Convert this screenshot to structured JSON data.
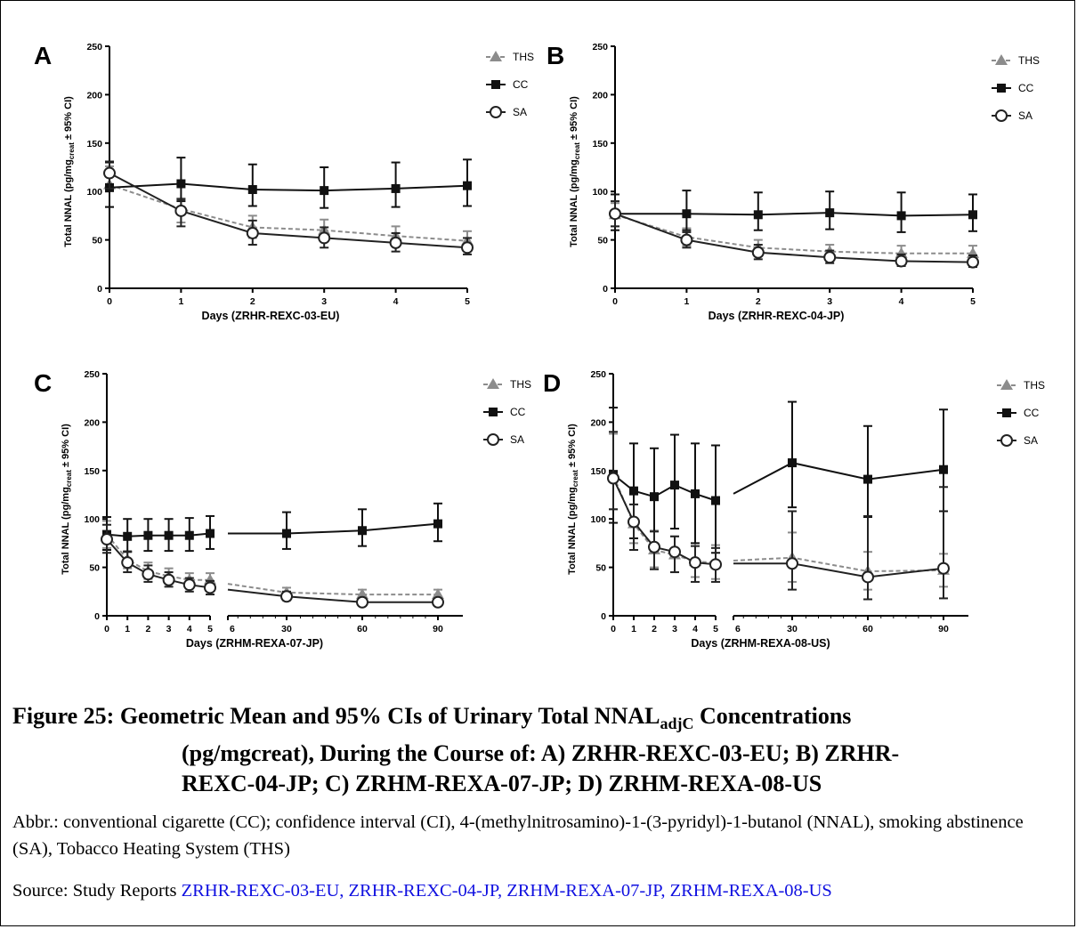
{
  "figure": {
    "caption_prefix": "Figure 25: Geometric Mean and 95% CIs of Urinary Total NNAL",
    "caption_sub": "adjC",
    "caption_rest_line1": " Concentrations",
    "caption_line2": "(pg/mgcreat), During the Course of: A) ZRHR-REXC-03-EU; B) ZRHR-",
    "caption_line3": "REXC-04-JP; C) ZRHM-REXA-07-JP; D) ZRHM-REXA-08-US",
    "abbr_text": "Abbr.: conventional cigarette (CC); confidence interval (CI), 4-(methylnitrosamino)-1-(3-pyridyl)-1-butanol (NNAL), smoking abstinence (SA), Tobacco Heating System (THS)",
    "source_label": "Source: Study Reports ",
    "source_link": "ZRHR-REXC-03-EU, ZRHR-REXC-04-JP, ZRHM-REXA-07-JP, ZRHM-REXA-08-US"
  },
  "colors": {
    "ths": "#8c8c8c",
    "cc": "#111111",
    "sa": "#222222",
    "link": "#1010e0"
  },
  "chart_data": [
    {
      "panel": "A",
      "type": "line",
      "ylabel": "Total NNAL (pg/mg",
      "ylabel_sub": "creat",
      "ylabel_suffix": " ± 95% CI)",
      "xlabel": "Days (ZRHR-REXC-03-EU)",
      "ylim": [
        0,
        250
      ],
      "yticks": [
        "0",
        "50",
        "100",
        "150",
        "200",
        "250"
      ],
      "xticks": [
        "0",
        "1",
        "2",
        "3",
        "4",
        "5"
      ],
      "legend": [
        "THS",
        "CC",
        "SA"
      ],
      "series": [
        {
          "name": "THS",
          "x": [
            0,
            1,
            2,
            3,
            4,
            5
          ],
          "y": [
            107,
            82,
            63,
            60,
            54,
            49
          ],
          "lo": [
            84,
            68,
            52,
            50,
            45,
            41
          ],
          "hi": [
            126,
            93,
            75,
            71,
            64,
            59
          ]
        },
        {
          "name": "CC",
          "x": [
            0,
            1,
            2,
            3,
            4,
            5
          ],
          "y": [
            104,
            108,
            102,
            101,
            103,
            106
          ],
          "lo": [
            84,
            90,
            85,
            83,
            84,
            85
          ],
          "hi": [
            130,
            135,
            128,
            125,
            130,
            133
          ]
        },
        {
          "name": "SA",
          "x": [
            0,
            1,
            2,
            3,
            4,
            5
          ],
          "y": [
            119,
            80,
            57,
            52,
            47,
            42
          ],
          "lo": [
            103,
            64,
            45,
            42,
            38,
            35
          ],
          "hi": [
            131,
            92,
            70,
            63,
            57,
            52
          ]
        }
      ]
    },
    {
      "panel": "B",
      "type": "line",
      "ylabel": "Total NNAL (pg/mg",
      "ylabel_sub": "creat",
      "ylabel_suffix": " ± 95% CI)",
      "xlabel": "Days (ZRHR-REXC-04-JP)",
      "ylim": [
        0,
        250
      ],
      "yticks": [
        "0",
        "50",
        "100",
        "150",
        "200",
        "250"
      ],
      "xticks": [
        "0",
        "1",
        "2",
        "3",
        "4",
        "5"
      ],
      "legend": [
        "THS",
        "CC",
        "SA"
      ],
      "series": [
        {
          "name": "THS",
          "x": [
            0,
            1,
            2,
            3,
            4,
            5
          ],
          "y": [
            76,
            53,
            42,
            38,
            36,
            36
          ],
          "lo": [
            64,
            44,
            34,
            30,
            28,
            28
          ],
          "hi": [
            88,
            62,
            50,
            45,
            44,
            44
          ]
        },
        {
          "name": "CC",
          "x": [
            0,
            1,
            2,
            3,
            4,
            5
          ],
          "y": [
            77,
            77,
            76,
            78,
            75,
            76
          ],
          "lo": [
            60,
            60,
            60,
            61,
            58,
            59
          ],
          "hi": [
            97,
            101,
            99,
            100,
            99,
            97
          ]
        },
        {
          "name": "SA",
          "x": [
            0,
            1,
            2,
            3,
            4,
            5
          ],
          "y": [
            77,
            50,
            37,
            32,
            28,
            27
          ],
          "lo": [
            64,
            42,
            30,
            26,
            23,
            22
          ],
          "hi": [
            90,
            58,
            45,
            39,
            35,
            34
          ]
        }
      ]
    },
    {
      "panel": "C",
      "type": "line",
      "ylabel": "Total NNAL (pg/mg",
      "ylabel_sub": "creat",
      "ylabel_suffix": " ± 95% CI)",
      "xlabel": "Days (ZRHM-REXA-07-JP)",
      "ylim": [
        0,
        250
      ],
      "yticks": [
        "0",
        "50",
        "100",
        "150",
        "200",
        "250"
      ],
      "xticks_left": [
        "0",
        "1",
        "2",
        "3",
        "4",
        "5"
      ],
      "xticks_right": [
        "6",
        "30",
        "60",
        "90"
      ],
      "legend": [
        "THS",
        "CC",
        "SA"
      ],
      "series": [
        {
          "name": "THS",
          "x": [
            0,
            1,
            2,
            3,
            4,
            5,
            6,
            30,
            60,
            90
          ],
          "y": [
            84,
            58,
            46,
            41,
            37,
            37,
            33,
            24,
            22,
            22
          ],
          "lo": [
            70,
            49,
            38,
            34,
            30,
            30,
            27,
            20,
            18,
            18
          ],
          "hi": [
            98,
            67,
            55,
            49,
            44,
            44,
            40,
            29,
            27,
            27
          ]
        },
        {
          "name": "CC",
          "x": [
            0,
            1,
            2,
            3,
            4,
            5,
            6,
            30,
            60,
            90
          ],
          "y": [
            84,
            82,
            83,
            83,
            83,
            85,
            85,
            85,
            88,
            95
          ],
          "lo": [
            68,
            66,
            67,
            67,
            67,
            69,
            69,
            69,
            72,
            77
          ],
          "hi": [
            102,
            100,
            100,
            100,
            101,
            103,
            103,
            107,
            110,
            116
          ]
        },
        {
          "name": "SA",
          "x": [
            0,
            1,
            2,
            3,
            4,
            5,
            6,
            30,
            60,
            90
          ],
          "y": [
            79,
            55,
            43,
            37,
            32,
            29,
            27,
            20,
            14,
            14
          ],
          "lo": [
            65,
            45,
            35,
            30,
            25,
            22,
            21,
            16,
            11,
            11
          ],
          "hi": [
            94,
            66,
            52,
            45,
            39,
            36,
            34,
            25,
            18,
            18
          ]
        }
      ]
    },
    {
      "panel": "D",
      "type": "line",
      "ylabel": "Total NNAL (pg/mg",
      "ylabel_sub": "creat",
      "ylabel_suffix": " ± 95% CI)",
      "xlabel": "Days (ZRHM-REXA-08-US)",
      "ylim": [
        0,
        250
      ],
      "yticks": [
        "0",
        "50",
        "100",
        "150",
        "200",
        "250"
      ],
      "xticks_left": [
        "0",
        "1",
        "2",
        "3",
        "4",
        "5"
      ],
      "xticks_right": [
        "6",
        "30",
        "60",
        "90"
      ],
      "legend": [
        "THS",
        "CC",
        "SA"
      ],
      "series": [
        {
          "name": "THS",
          "x": [
            0,
            1,
            2,
            3,
            4,
            5,
            6,
            30,
            60,
            90
          ],
          "y": [
            145,
            95,
            68,
            63,
            56,
            55,
            57,
            60,
            46,
            47
          ],
          "lo": [
            110,
            75,
            50,
            45,
            40,
            38,
            40,
            35,
            27,
            30
          ],
          "hi": [
            188,
            115,
            88,
            82,
            75,
            73,
            75,
            86,
            66,
            64
          ]
        },
        {
          "name": "CC",
          "x": [
            0,
            1,
            2,
            3,
            4,
            5,
            6,
            30,
            60,
            90
          ],
          "y": [
            146,
            129,
            123,
            135,
            126,
            119,
            126,
            158,
            141,
            151
          ],
          "lo": [
            96,
            80,
            70,
            90,
            75,
            65,
            75,
            112,
            102,
            108
          ],
          "hi": [
            215,
            178,
            173,
            187,
            178,
            176,
            178,
            221,
            196,
            213
          ]
        },
        {
          "name": "SA",
          "x": [
            0,
            1,
            2,
            3,
            4,
            5,
            6,
            30,
            60,
            90
          ],
          "y": [
            142,
            97,
            71,
            66,
            55,
            53,
            54,
            54,
            40,
            49
          ],
          "lo": [
            110,
            68,
            48,
            45,
            35,
            35,
            36,
            27,
            17,
            18
          ],
          "hi": [
            190,
            115,
            87,
            82,
            72,
            70,
            72,
            108,
            103,
            133
          ]
        }
      ]
    }
  ]
}
